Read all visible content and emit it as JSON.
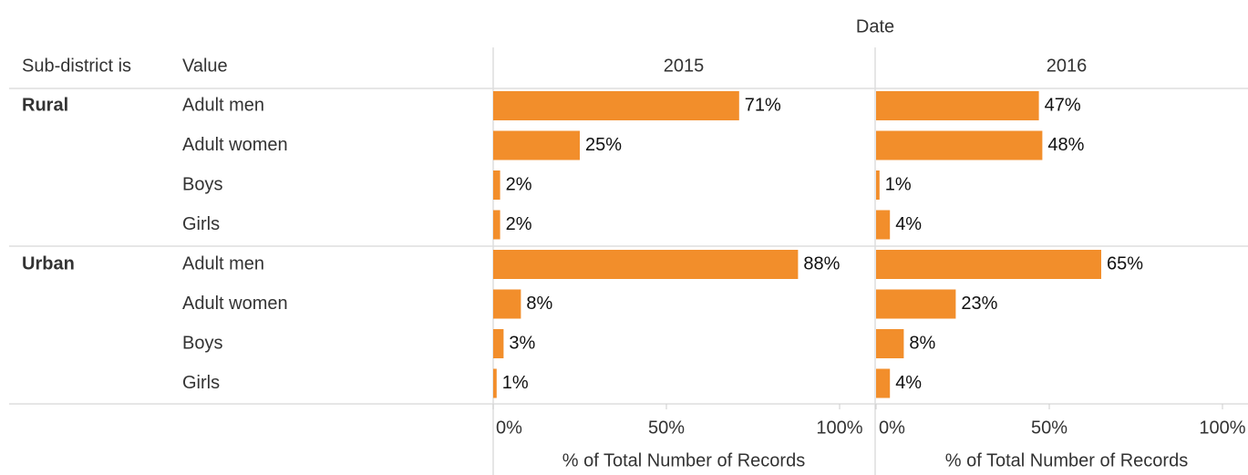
{
  "chart_data": {
    "type": "bar",
    "header": "Date",
    "row_header_1": "Sub-district is",
    "row_header_2": "Value",
    "groups": [
      "Rural",
      "Urban"
    ],
    "categories": [
      "Adult men",
      "Adult women",
      "Boys",
      "Girls"
    ],
    "color": "#f28e2b",
    "panels": [
      {
        "title": "2015",
        "xlabel": "% of Total Number of Records",
        "xlim": [
          0,
          100
        ],
        "xticks": [
          {
            "value": 0,
            "label": "0%"
          },
          {
            "value": 50,
            "label": "50%"
          },
          {
            "value": 100,
            "label": "100%"
          }
        ],
        "values": [
          [
            71,
            25,
            2,
            2
          ],
          [
            88,
            8,
            3,
            1
          ]
        ],
        "value_labels": [
          [
            "71%",
            "25%",
            "2%",
            "2%"
          ],
          [
            "88%",
            "8%",
            "3%",
            "1%"
          ]
        ]
      },
      {
        "title": "2016",
        "xlabel": "% of Total Number of Records",
        "xlim": [
          0,
          100
        ],
        "xticks": [
          {
            "value": 0,
            "label": "0%"
          },
          {
            "value": 50,
            "label": "50%"
          },
          {
            "value": 100,
            "label": "100%"
          }
        ],
        "values": [
          [
            47,
            48,
            1,
            4
          ],
          [
            65,
            23,
            8,
            4
          ]
        ],
        "value_labels": [
          [
            "47%",
            "48%",
            "1%",
            "4%"
          ],
          [
            "65%",
            "23%",
            "8%",
            "4%"
          ]
        ]
      }
    ]
  }
}
